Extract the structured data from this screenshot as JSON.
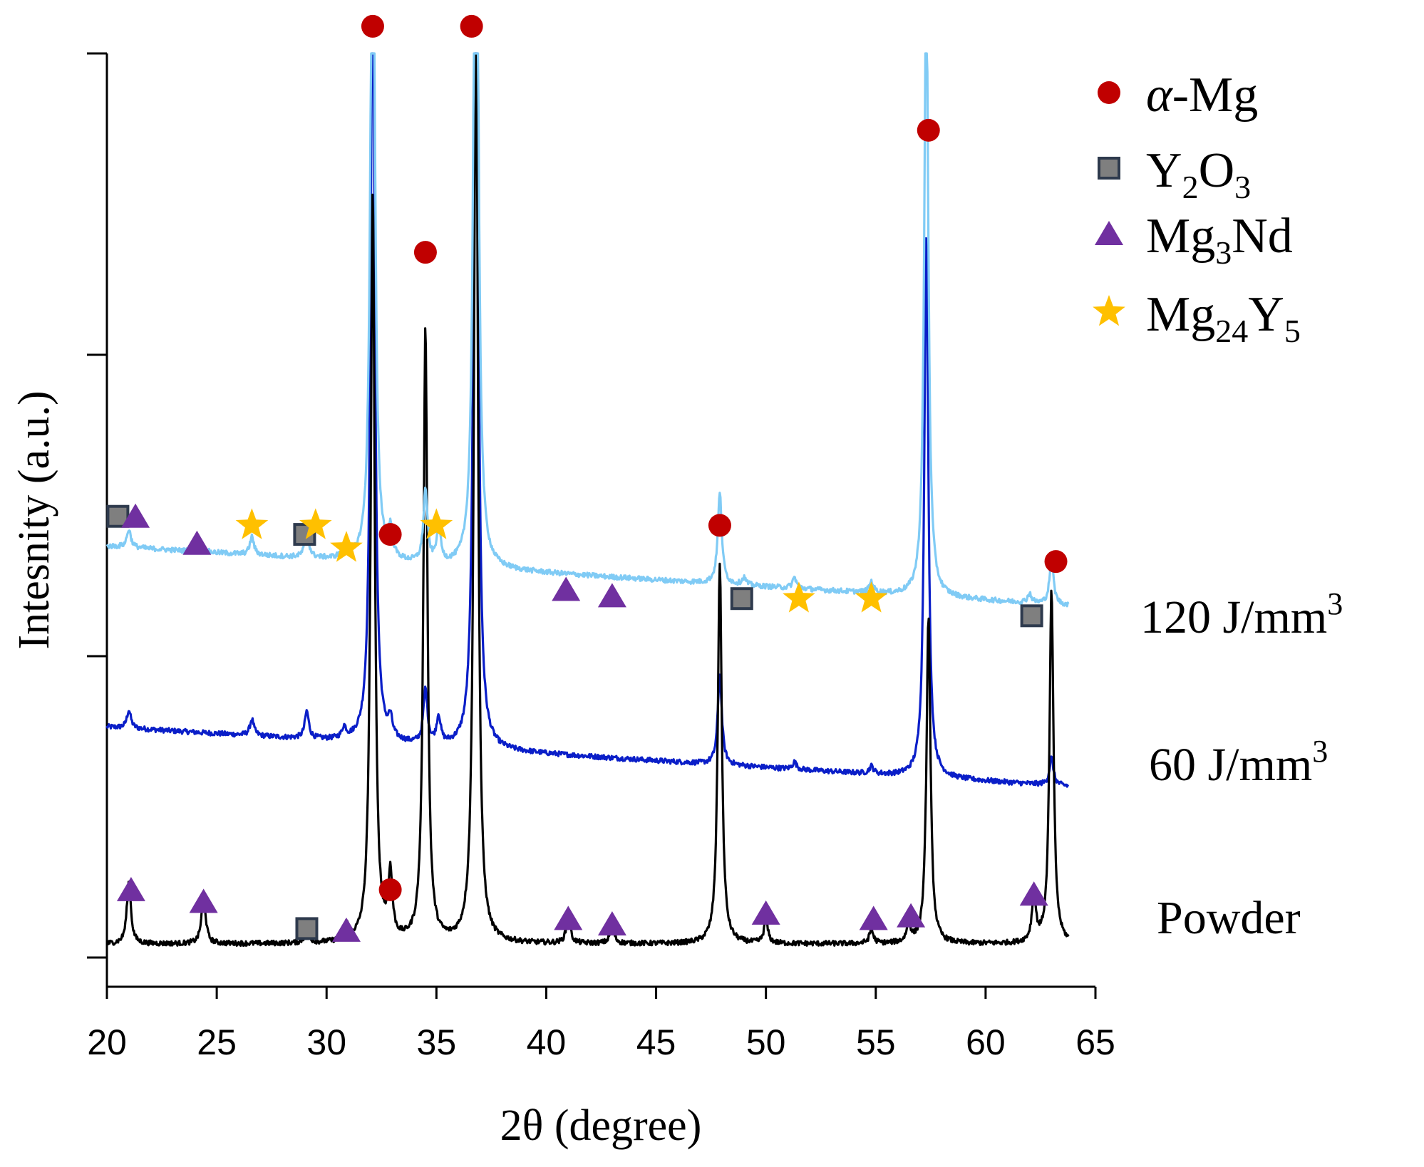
{
  "chart_data": {
    "type": "line",
    "title": "",
    "xlabel": "2θ (degree)",
    "ylabel": "Intesnity (a.u.)",
    "xlim": [
      20,
      65
    ],
    "ylim": [
      0,
      100
    ],
    "xticks": [
      20,
      25,
      30,
      35,
      40,
      45,
      50,
      55,
      60,
      65
    ],
    "grid": false,
    "legend_position": "top-right",
    "legend": [
      {
        "marker": "circle",
        "label_main": "α",
        "label_rest": "-Mg",
        "color": "#c00000"
      },
      {
        "marker": "square",
        "label_base": "Y",
        "label_sub1": "2",
        "label_mid": "O",
        "label_sub2": "3",
        "color": "#7f7f7f"
      },
      {
        "marker": "triangle",
        "label_base": "Mg",
        "label_sub1": "3",
        "label_mid": "Nd",
        "label_sub2": "",
        "color": "#7030a0"
      },
      {
        "marker": "star",
        "label_base": "Mg",
        "label_sub1": "24",
        "label_mid": "Y",
        "label_sub2": "5",
        "color": "#ffc000"
      }
    ],
    "series": [
      {
        "name": "Powder",
        "label_text": "Powder",
        "label_sup": "",
        "color": "#000000",
        "baseline": 1.5,
        "slope": 0,
        "peaks": [
          [
            21.0,
            7
          ],
          [
            24.4,
            5.5
          ],
          [
            29.1,
            1.5
          ],
          [
            30.9,
            1.8
          ],
          [
            32.1,
            83
          ],
          [
            32.9,
            7
          ],
          [
            34.5,
            68
          ],
          [
            36.8,
            105
          ],
          [
            41.0,
            3
          ],
          [
            43.0,
            2
          ],
          [
            47.9,
            42
          ],
          [
            50.0,
            2.5
          ],
          [
            54.8,
            1.5
          ],
          [
            56.5,
            2
          ],
          [
            57.4,
            36
          ],
          [
            62.2,
            5
          ],
          [
            63.0,
            39
          ]
        ]
      },
      {
        "name": "60 J/mm3",
        "label_text": "60 J/mm",
        "label_sup": "3",
        "color": "#0a1ec8",
        "baseline": 25.5,
        "slope": -0.3,
        "peaks": [
          [
            21.0,
            2
          ],
          [
            26.6,
            1.8
          ],
          [
            29.1,
            3
          ],
          [
            30.8,
            1.2
          ],
          [
            32.1,
            90
          ],
          [
            32.9,
            2
          ],
          [
            34.5,
            6
          ],
          [
            35.1,
            3
          ],
          [
            36.8,
            110
          ],
          [
            47.9,
            10
          ],
          [
            51.3,
            0.8
          ],
          [
            54.8,
            0.8
          ],
          [
            57.3,
            60
          ],
          [
            63.0,
            3
          ]
        ]
      },
      {
        "name": "120 J/mm3",
        "label_text": "120 J/mm",
        "label_sup": "3",
        "color": "#80cbf5",
        "baseline": 45.5,
        "slope": -0.3,
        "peaks": [
          [
            21.0,
            2
          ],
          [
            24.3,
            0.8
          ],
          [
            26.6,
            2
          ],
          [
            29.1,
            3
          ],
          [
            30.8,
            1.5
          ],
          [
            32.1,
            90
          ],
          [
            32.9,
            3
          ],
          [
            34.5,
            8
          ],
          [
            35.1,
            4
          ],
          [
            36.8,
            110
          ],
          [
            47.9,
            10
          ],
          [
            49.0,
            0.8
          ],
          [
            51.3,
            1.2
          ],
          [
            54.8,
            1.2
          ],
          [
            57.3,
            70
          ],
          [
            62.0,
            1
          ],
          [
            63.0,
            5
          ]
        ]
      }
    ],
    "markers": [
      {
        "series": "Powder",
        "x": 21.1,
        "y": 7.5,
        "type": "triangle"
      },
      {
        "series": "Powder",
        "x": 24.4,
        "y": 6.2,
        "type": "triangle"
      },
      {
        "series": "Powder",
        "x": 29.1,
        "y": 3.2,
        "type": "square"
      },
      {
        "series": "Powder",
        "x": 30.9,
        "y": 3.0,
        "type": "triangle"
      },
      {
        "series": "Powder",
        "x": 32.9,
        "y": 7.5,
        "type": "circle"
      },
      {
        "series": "Powder",
        "x": 41.0,
        "y": 4.3,
        "type": "triangle"
      },
      {
        "series": "Powder",
        "x": 43.0,
        "y": 3.7,
        "type": "triangle"
      },
      {
        "series": "Powder",
        "x": 50.0,
        "y": 4.9,
        "type": "triangle"
      },
      {
        "series": "Powder",
        "x": 54.9,
        "y": 4.3,
        "type": "triangle"
      },
      {
        "series": "Powder",
        "x": 56.6,
        "y": 4.6,
        "type": "triangle"
      },
      {
        "series": "Powder",
        "x": 62.2,
        "y": 7.0,
        "type": "triangle"
      },
      {
        "series": "120 J/mm3",
        "x": 20.5,
        "y": 48.8,
        "type": "square"
      },
      {
        "series": "120 J/mm3",
        "x": 21.3,
        "y": 48.8,
        "type": "triangle"
      },
      {
        "series": "120 J/mm3",
        "x": 24.1,
        "y": 45.8,
        "type": "triangle"
      },
      {
        "series": "120 J/mm3",
        "x": 26.6,
        "y": 47.8,
        "type": "star"
      },
      {
        "series": "120 J/mm3",
        "x": 29.0,
        "y": 46.8,
        "type": "square"
      },
      {
        "series": "120 J/mm3",
        "x": 29.5,
        "y": 47.8,
        "type": "star"
      },
      {
        "series": "120 J/mm3",
        "x": 30.9,
        "y": 45.3,
        "type": "star"
      },
      {
        "series": "120 J/mm3",
        "x": 32.9,
        "y": 46.8,
        "type": "circle"
      },
      {
        "series": "120 J/mm3",
        "x": 35.0,
        "y": 47.8,
        "type": "star"
      },
      {
        "series": "120 J/mm3",
        "x": 40.9,
        "y": 40.7,
        "type": "triangle"
      },
      {
        "series": "120 J/mm3",
        "x": 43.0,
        "y": 40.0,
        "type": "triangle"
      },
      {
        "series": "120 J/mm3",
        "x": 47.9,
        "y": 47.8,
        "type": "circle"
      },
      {
        "series": "120 J/mm3",
        "x": 48.9,
        "y": 39.7,
        "type": "square"
      },
      {
        "series": "120 J/mm3",
        "x": 51.5,
        "y": 39.7,
        "type": "star"
      },
      {
        "series": "120 J/mm3",
        "x": 54.8,
        "y": 39.7,
        "type": "star"
      },
      {
        "series": "120 J/mm3",
        "x": 62.1,
        "y": 37.8,
        "type": "square"
      },
      {
        "series": "120 J/mm3",
        "x": 63.2,
        "y": 43.8,
        "type": "circle"
      },
      {
        "series": "top",
        "x": 32.1,
        "y": 103.0,
        "type": "circle"
      },
      {
        "series": "top",
        "x": 36.6,
        "y": 103.0,
        "type": "circle"
      },
      {
        "series": "top",
        "x": 34.5,
        "y": 78.0,
        "type": "circle"
      },
      {
        "series": "top",
        "x": 57.4,
        "y": 91.5,
        "type": "circle"
      }
    ]
  }
}
